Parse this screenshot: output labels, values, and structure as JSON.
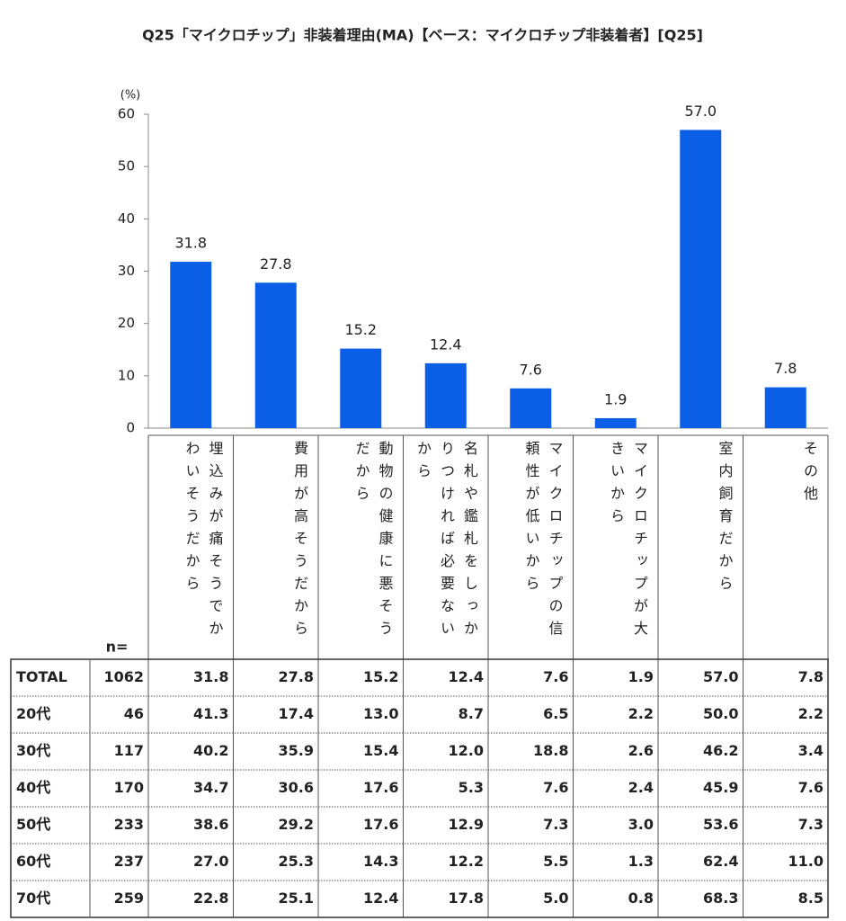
{
  "chart_data": {
    "type": "bar",
    "title": "Q25「マイクロチップ」非装着理由(MA)【ベース：マイクロチップ非装着者】[Q25]",
    "y_label": "(%)",
    "categories": [
      "埋込みが痛そうでかわいそうだから",
      "費用が高そうだから",
      "動物の健康に悪そうだから",
      "名札や鑑札をしっかりつければ必要ないから",
      "マイクロチップの信頼性が低いから",
      "マイクロチップが大きいから",
      "室内飼育だから",
      "その他"
    ],
    "values": [
      31.8,
      27.8,
      15.2,
      12.4,
      7.6,
      1.9,
      57.0,
      7.8
    ],
    "value_labels": [
      "31.8",
      "27.8",
      "15.2",
      "12.4",
      "7.6",
      "1.9",
      "57.0",
      "7.8"
    ],
    "color": "#0a5fe6",
    "ylim": [
      0,
      60
    ],
    "yticks": [
      0,
      10,
      20,
      30,
      40,
      50,
      60
    ]
  },
  "table": {
    "n_header": "n=",
    "rows": [
      {
        "label": "TOTAL",
        "n": "1062",
        "values": [
          "31.8",
          "27.8",
          "15.2",
          "12.4",
          "7.6",
          "1.9",
          "57.0",
          "7.8"
        ]
      },
      {
        "label": "20代",
        "n": "46",
        "values": [
          "41.3",
          "17.4",
          "13.0",
          "8.7",
          "6.5",
          "2.2",
          "50.0",
          "2.2"
        ]
      },
      {
        "label": "30代",
        "n": "117",
        "values": [
          "40.2",
          "35.9",
          "15.4",
          "12.0",
          "18.8",
          "2.6",
          "46.2",
          "3.4"
        ]
      },
      {
        "label": "40代",
        "n": "170",
        "values": [
          "34.7",
          "30.6",
          "17.6",
          "5.3",
          "7.6",
          "2.4",
          "45.9",
          "7.6"
        ]
      },
      {
        "label": "50代",
        "n": "233",
        "values": [
          "38.6",
          "29.2",
          "17.6",
          "12.9",
          "7.3",
          "3.0",
          "53.6",
          "7.3"
        ]
      },
      {
        "label": "60代",
        "n": "237",
        "values": [
          "27.0",
          "25.3",
          "14.3",
          "12.2",
          "5.5",
          "1.3",
          "62.4",
          "11.0"
        ]
      },
      {
        "label": "70代",
        "n": "259",
        "values": [
          "22.8",
          "25.1",
          "12.4",
          "17.8",
          "5.0",
          "0.8",
          "68.3",
          "8.5"
        ]
      }
    ]
  }
}
